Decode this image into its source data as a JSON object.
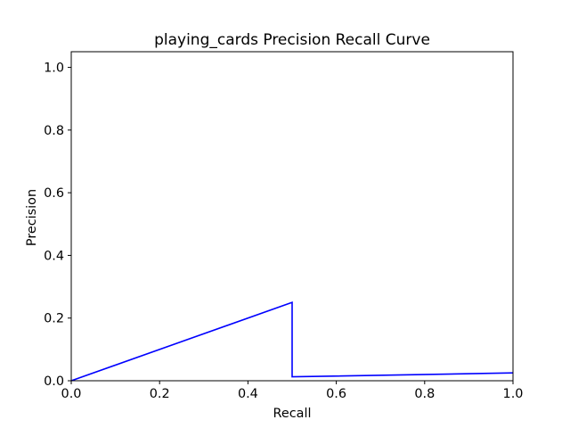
{
  "chart_data": {
    "type": "line",
    "title": "playing_cards Precision Recall Curve",
    "xlabel": "Recall",
    "ylabel": "Precision",
    "xlim": [
      0.0,
      1.0
    ],
    "ylim": [
      0.0,
      1.05
    ],
    "x_ticks": [
      "0.0",
      "0.2",
      "0.4",
      "0.6",
      "0.8",
      "1.0"
    ],
    "y_ticks": [
      "0.0",
      "0.2",
      "0.4",
      "0.6",
      "0.8",
      "1.0"
    ],
    "grid": false,
    "series": [
      {
        "color": "#0000ff",
        "points": [
          {
            "x": 0.0,
            "y": 0.0
          },
          {
            "x": 0.5,
            "y": 0.25
          },
          {
            "x": 0.5,
            "y": 0.0125
          },
          {
            "x": 1.0,
            "y": 0.025
          }
        ]
      }
    ]
  }
}
